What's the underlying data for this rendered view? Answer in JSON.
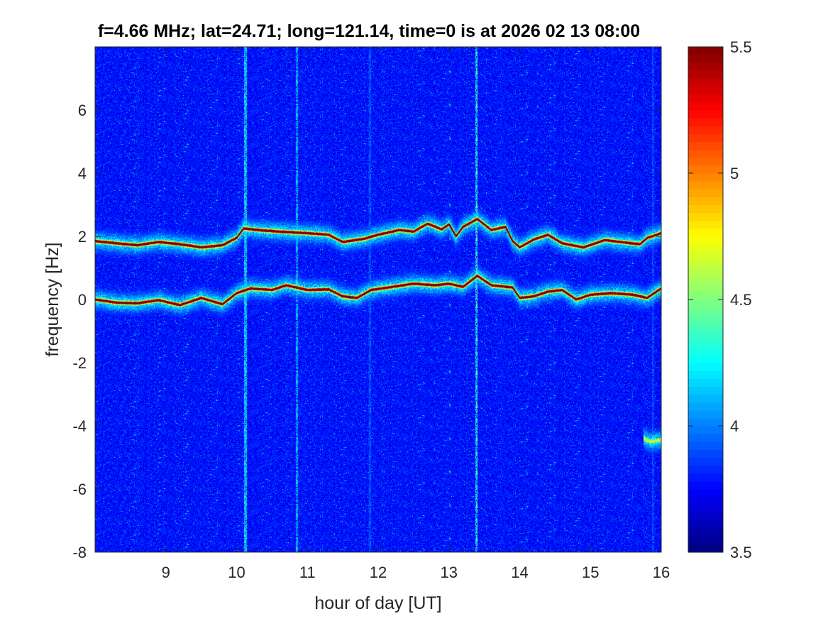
{
  "chart_data": {
    "type": "heatmap",
    "title": "f=4.66 MHz;  lat=24.71; long=121.14, time=0 is at 2026 02 13 08:00",
    "xlabel": "hour of day [UT]",
    "ylabel": "frequency [Hz]",
    "xlim": [
      8,
      16
    ],
    "ylim": [
      -8,
      8
    ],
    "xticks": [
      9,
      10,
      11,
      12,
      13,
      14,
      15,
      16
    ],
    "yticks": [
      -8,
      -6,
      -4,
      -2,
      0,
      2,
      4,
      6
    ],
    "colorbar": {
      "range": [
        3.5,
        5.5
      ],
      "ticks": [
        3.5,
        4,
        4.5,
        5,
        5.5
      ],
      "colormap": "jet"
    },
    "grid": false,
    "background_level": 3.75,
    "traces": [
      {
        "peak_level": 5.5,
        "points": [
          [
            8.0,
            1.85
          ],
          [
            8.3,
            1.78
          ],
          [
            8.6,
            1.72
          ],
          [
            8.9,
            1.82
          ],
          [
            9.2,
            1.75
          ],
          [
            9.5,
            1.65
          ],
          [
            9.8,
            1.72
          ],
          [
            10.0,
            1.95
          ],
          [
            10.1,
            2.25
          ],
          [
            10.3,
            2.2
          ],
          [
            10.6,
            2.15
          ],
          [
            11.0,
            2.1
          ],
          [
            11.3,
            2.05
          ],
          [
            11.5,
            1.82
          ],
          [
            11.8,
            1.92
          ],
          [
            12.0,
            2.05
          ],
          [
            12.3,
            2.2
          ],
          [
            12.5,
            2.15
          ],
          [
            12.7,
            2.4
          ],
          [
            12.9,
            2.22
          ],
          [
            13.0,
            2.38
          ],
          [
            13.1,
            2.0
          ],
          [
            13.2,
            2.3
          ],
          [
            13.4,
            2.55
          ],
          [
            13.6,
            2.2
          ],
          [
            13.8,
            2.3
          ],
          [
            13.9,
            1.85
          ],
          [
            14.0,
            1.65
          ],
          [
            14.2,
            1.9
          ],
          [
            14.4,
            2.05
          ],
          [
            14.6,
            1.78
          ],
          [
            14.9,
            1.65
          ],
          [
            15.2,
            1.88
          ],
          [
            15.5,
            1.8
          ],
          [
            15.7,
            1.75
          ],
          [
            15.8,
            1.95
          ],
          [
            16.0,
            2.1
          ]
        ]
      },
      {
        "peak_level": 5.5,
        "points": [
          [
            8.0,
            0.0
          ],
          [
            8.3,
            -0.1
          ],
          [
            8.6,
            -0.12
          ],
          [
            8.9,
            -0.02
          ],
          [
            9.2,
            -0.18
          ],
          [
            9.5,
            0.05
          ],
          [
            9.8,
            -0.15
          ],
          [
            10.0,
            0.2
          ],
          [
            10.2,
            0.35
          ],
          [
            10.5,
            0.3
          ],
          [
            10.7,
            0.45
          ],
          [
            11.0,
            0.3
          ],
          [
            11.3,
            0.32
          ],
          [
            11.5,
            0.1
          ],
          [
            11.7,
            0.05
          ],
          [
            11.9,
            0.3
          ],
          [
            12.2,
            0.4
          ],
          [
            12.5,
            0.5
          ],
          [
            12.8,
            0.45
          ],
          [
            13.0,
            0.5
          ],
          [
            13.2,
            0.4
          ],
          [
            13.4,
            0.75
          ],
          [
            13.6,
            0.45
          ],
          [
            13.9,
            0.38
          ],
          [
            14.0,
            0.05
          ],
          [
            14.2,
            0.1
          ],
          [
            14.4,
            0.25
          ],
          [
            14.6,
            0.3
          ],
          [
            14.8,
            0.0
          ],
          [
            15.0,
            0.15
          ],
          [
            15.3,
            0.2
          ],
          [
            15.6,
            0.15
          ],
          [
            15.8,
            0.05
          ],
          [
            16.0,
            0.35
          ]
        ]
      },
      {
        "peak_level": 4.6,
        "points": [
          [
            15.75,
            -4.4
          ],
          [
            15.85,
            -4.5
          ],
          [
            16.0,
            -4.45
          ]
        ]
      }
    ],
    "vertical_streaks": [
      {
        "x": 10.12,
        "level": 4.4
      },
      {
        "x": 10.85,
        "level": 4.3
      },
      {
        "x": 11.88,
        "level": 4.1
      },
      {
        "x": 13.38,
        "level": 4.5
      },
      {
        "x": 15.88,
        "level": 4.1
      }
    ]
  }
}
